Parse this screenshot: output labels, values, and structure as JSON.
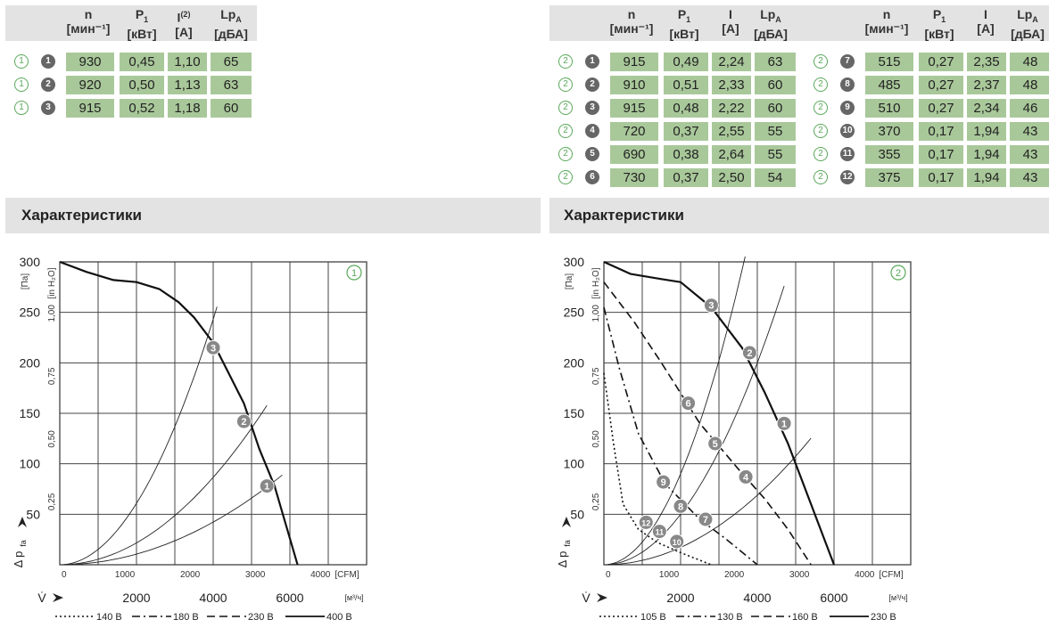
{
  "left_table": {
    "headers": [
      {
        "main": "n",
        "sub": "",
        "unit": "[мин⁻¹]"
      },
      {
        "main": "P",
        "sub": "1",
        "unit": "[кВт]"
      },
      {
        "main": "I",
        "sup": "(2)",
        "unit": "[А]"
      },
      {
        "main": "Lp",
        "sub": "A",
        "unit": "[дБА]"
      }
    ],
    "rows": [
      {
        "curve": "1",
        "point": "1",
        "n": "930",
        "p1": "0,45",
        "i": "1,10",
        "lpa": "65"
      },
      {
        "curve": "1",
        "point": "2",
        "n": "920",
        "p1": "0,50",
        "i": "1,13",
        "lpa": "63"
      },
      {
        "curve": "1",
        "point": "3",
        "n": "915",
        "p1": "0,52",
        "i": "1,18",
        "lpa": "60"
      }
    ]
  },
  "right_table": {
    "headers": [
      {
        "main": "n",
        "sub": "",
        "unit": "[мин⁻¹]"
      },
      {
        "main": "P",
        "sub": "1",
        "unit": "[кВт]"
      },
      {
        "main": "I",
        "sub": "",
        "unit": "[А]"
      },
      {
        "main": "Lp",
        "sub": "A",
        "unit": "[дБА]"
      }
    ],
    "rows_a": [
      {
        "curve": "2",
        "point": "1",
        "n": "915",
        "p1": "0,49",
        "i": "2,24",
        "lpa": "63"
      },
      {
        "curve": "2",
        "point": "2",
        "n": "910",
        "p1": "0,51",
        "i": "2,33",
        "lpa": "60"
      },
      {
        "curve": "2",
        "point": "3",
        "n": "915",
        "p1": "0,48",
        "i": "2,22",
        "lpa": "60"
      },
      {
        "curve": "2",
        "point": "4",
        "n": "720",
        "p1": "0,37",
        "i": "2,55",
        "lpa": "55"
      },
      {
        "curve": "2",
        "point": "5",
        "n": "690",
        "p1": "0,38",
        "i": "2,64",
        "lpa": "55"
      },
      {
        "curve": "2",
        "point": "6",
        "n": "730",
        "p1": "0,37",
        "i": "2,50",
        "lpa": "54"
      }
    ],
    "rows_b": [
      {
        "curve": "2",
        "point": "7",
        "n": "515",
        "p1": "0,27",
        "i": "2,35",
        "lpa": "48"
      },
      {
        "curve": "2",
        "point": "8",
        "n": "485",
        "p1": "0,27",
        "i": "2,37",
        "lpa": "48"
      },
      {
        "curve": "2",
        "point": "9",
        "n": "510",
        "p1": "0,27",
        "i": "2,34",
        "lpa": "46"
      },
      {
        "curve": "2",
        "point": "10",
        "n": "370",
        "p1": "0,17",
        "i": "1,94",
        "lpa": "43"
      },
      {
        "curve": "2",
        "point": "11",
        "n": "355",
        "p1": "0,17",
        "i": "1,94",
        "lpa": "43"
      },
      {
        "curve": "2",
        "point": "12",
        "n": "375",
        "p1": "0,17",
        "i": "1,94",
        "lpa": "43"
      }
    ]
  },
  "sections": {
    "left_title": "Характеристики",
    "right_title": "Характеристики"
  },
  "colors": {
    "header_bg": "#e3e3e3",
    "value_bg": "#a9c89a",
    "accent_green": "#5aa85a",
    "marker_gray": "#777777"
  },
  "chart_data": [
    {
      "type": "line",
      "badge": "1",
      "x_unit_top": "[CFM]",
      "x_unit_bottom": "[м³/ч]",
      "y_unit_left": "[Па]",
      "y_unit_right": "[in H₂O]",
      "y_label": "Δ p",
      "y_label_sub": "fa",
      "x_label": "V̇",
      "xlim": [
        0,
        8000
      ],
      "ylim": [
        0,
        300
      ],
      "x_ticks_m3h": [
        "2000",
        "4000",
        "6000"
      ],
      "x_ticks_cfm": [
        "0",
        "1000",
        "2000",
        "3000",
        "4000"
      ],
      "y_ticks_pa": [
        "50",
        "100",
        "150",
        "200",
        "250",
        "300"
      ],
      "y_ticks_inh2o": [
        "0,25",
        "0,50",
        "0,75",
        "1,00"
      ],
      "fan_curves": [
        {
          "name": "400 В",
          "style": "solid",
          "x": [
            0,
            700,
            1400,
            2000,
            2600,
            3100,
            3500,
            4000,
            4800,
            5200,
            5600,
            6200
          ],
          "y": [
            300,
            290,
            282,
            280,
            273,
            260,
            245,
            220,
            160,
            115,
            78,
            0
          ]
        }
      ],
      "system_curves": [
        {
          "x": [
            0,
            1000,
            2000,
            3000,
            4000,
            4800,
            5200,
            5800
          ],
          "k": 2.64e-06
        },
        {
          "x": [
            0,
            1000,
            2000,
            3000,
            4000,
            4800,
            5400
          ],
          "k": 5.41e-06
        },
        {
          "x": [
            0,
            1000,
            2000,
            3000,
            3700,
            4100
          ],
          "k": 1.52e-05
        }
      ],
      "points": [
        {
          "label": "1",
          "x": 5400,
          "y": 78
        },
        {
          "label": "2",
          "x": 4800,
          "y": 142
        },
        {
          "label": "3",
          "x": 4000,
          "y": 215
        }
      ],
      "legend": [
        "140 В",
        "180 В",
        "230 В",
        "400 В"
      ]
    },
    {
      "type": "line",
      "badge": "2",
      "x_unit_top": "[CFM]",
      "x_unit_bottom": "[м³/ч]",
      "y_unit_left": "[Па]",
      "y_unit_right": "[in H₂O]",
      "y_label": "Δ p",
      "y_label_sub": "fa",
      "x_label": "V̇",
      "xlim": [
        0,
        8000
      ],
      "ylim": [
        0,
        300
      ],
      "x_ticks_m3h": [
        "2000",
        "4000",
        "6000"
      ],
      "x_ticks_cfm": [
        "0",
        "1000",
        "2000",
        "3000",
        "4000"
      ],
      "y_ticks_pa": [
        "50",
        "100",
        "150",
        "200",
        "250",
        "300"
      ],
      "y_ticks_inh2o": [
        "0,25",
        "0,50",
        "0,75",
        "1,00"
      ],
      "fan_curves": [
        {
          "name": "230 В",
          "style": "solid",
          "x": [
            0,
            700,
            1500,
            2000,
            2800,
            3600,
            4200,
            4800,
            5400,
            6000
          ],
          "y": [
            300,
            288,
            283,
            280,
            255,
            215,
            170,
            120,
            60,
            0
          ]
        },
        {
          "name": "160 В",
          "style": "dash",
          "x": [
            0,
            800,
            1500,
            2500,
            3500,
            4200,
            4800,
            5400
          ],
          "y": [
            280,
            240,
            200,
            140,
            95,
            65,
            35,
            0
          ]
        },
        {
          "name": "130 В",
          "style": "dashdot",
          "x": [
            0,
            400,
            900,
            1600,
            2500,
            3200,
            4000
          ],
          "y": [
            255,
            195,
            130,
            80,
            45,
            25,
            0
          ]
        },
        {
          "name": "105 В",
          "style": "dot",
          "x": [
            0,
            250,
            500,
            900,
            1400,
            2000,
            2800
          ],
          "y": [
            190,
            120,
            60,
            35,
            22,
            12,
            0
          ]
        }
      ],
      "system_curves": [
        {
          "x": [
            0,
            1000,
            2000,
            3000,
            4000,
            5000,
            5400
          ],
          "k": 4.3e-06
        },
        {
          "x": [
            0,
            1000,
            2000,
            3000,
            4000,
            4700
          ],
          "k": 1.25e-05
        },
        {
          "x": [
            0,
            1000,
            2000,
            3000,
            3700
          ],
          "k": 2.25e-05
        }
      ],
      "points": [
        {
          "label": "1",
          "x": 4700,
          "y": 140
        },
        {
          "label": "2",
          "x": 3800,
          "y": 210
        },
        {
          "label": "3",
          "x": 2800,
          "y": 257
        },
        {
          "label": "4",
          "x": 3700,
          "y": 87
        },
        {
          "label": "5",
          "x": 2900,
          "y": 120
        },
        {
          "label": "6",
          "x": 2200,
          "y": 160
        },
        {
          "label": "7",
          "x": 2650,
          "y": 45
        },
        {
          "label": "8",
          "x": 2000,
          "y": 58
        },
        {
          "label": "9",
          "x": 1550,
          "y": 82
        },
        {
          "label": "10",
          "x": 1900,
          "y": 23
        },
        {
          "label": "11",
          "x": 1450,
          "y": 33
        },
        {
          "label": "12",
          "x": 1100,
          "y": 42
        }
      ],
      "legend": [
        "105 В",
        "130 В",
        "160 В",
        "230 В"
      ]
    }
  ]
}
